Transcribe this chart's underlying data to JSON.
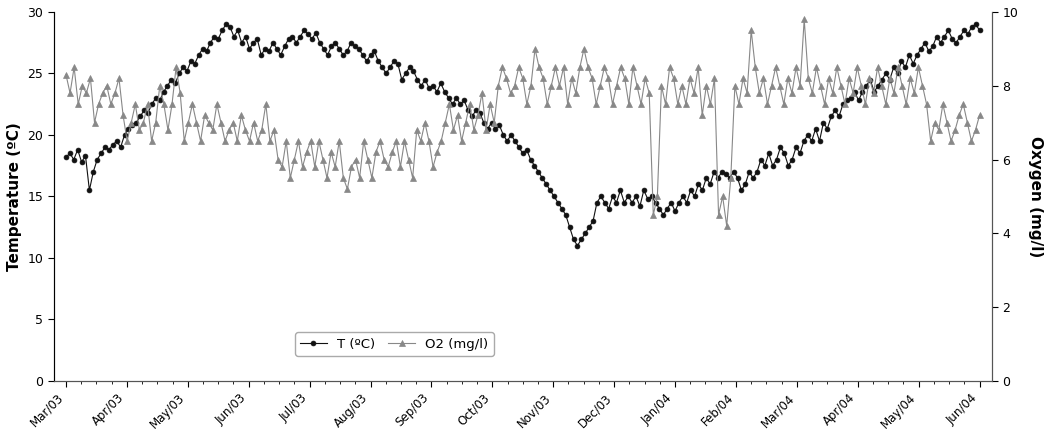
{
  "temp_data": [
    18.2,
    18.5,
    18.0,
    18.8,
    17.8,
    18.3,
    15.5,
    17.0,
    18.0,
    18.5,
    19.0,
    18.8,
    19.2,
    19.5,
    19.0,
    20.0,
    20.5,
    20.8,
    21.0,
    21.5,
    22.0,
    21.8,
    22.5,
    23.0,
    22.8,
    23.5,
    24.0,
    24.5,
    24.2,
    25.0,
    25.5,
    25.2,
    26.0,
    25.8,
    26.5,
    27.0,
    26.8,
    27.5,
    28.0,
    27.8,
    28.5,
    29.0,
    28.8,
    28.0,
    28.5,
    27.5,
    28.0,
    27.0,
    27.5,
    27.8,
    26.5,
    27.0,
    26.8,
    27.5,
    27.0,
    26.5,
    27.2,
    27.8,
    28.0,
    27.5,
    28.0,
    28.5,
    28.2,
    27.8,
    28.3,
    27.5,
    27.0,
    26.5,
    27.2,
    27.5,
    27.0,
    26.5,
    26.8,
    27.5,
    27.2,
    27.0,
    26.5,
    26.0,
    26.5,
    26.8,
    26.0,
    25.5,
    25.0,
    25.5,
    26.0,
    25.8,
    24.5,
    25.0,
    25.5,
    25.2,
    24.5,
    24.0,
    24.5,
    23.8,
    24.0,
    23.5,
    24.2,
    23.5,
    23.0,
    22.5,
    23.0,
    22.5,
    22.8,
    22.0,
    21.5,
    22.0,
    21.8,
    21.0,
    20.5,
    21.0,
    20.5,
    20.8,
    20.0,
    19.5,
    20.0,
    19.5,
    19.0,
    18.5,
    18.8,
    18.0,
    17.5,
    17.0,
    16.5,
    16.0,
    15.5,
    15.0,
    14.5,
    14.0,
    13.5,
    12.5,
    11.5,
    11.0,
    11.5,
    12.0,
    12.5,
    13.0,
    14.5,
    15.0,
    14.5,
    14.0,
    15.0,
    14.5,
    15.5,
    14.5,
    15.0,
    14.5,
    15.0,
    14.2,
    15.5,
    14.8,
    15.0,
    14.5,
    14.0,
    13.5,
    14.0,
    14.5,
    13.8,
    14.5,
    15.0,
    14.5,
    15.5,
    15.0,
    16.0,
    15.5,
    16.5,
    16.0,
    17.0,
    16.5,
    17.0,
    16.8,
    16.5,
    17.0,
    16.5,
    15.5,
    16.0,
    17.0,
    16.5,
    17.0,
    18.0,
    17.5,
    18.5,
    17.5,
    18.0,
    19.0,
    18.5,
    17.5,
    18.0,
    19.0,
    18.5,
    19.5,
    20.0,
    19.5,
    20.5,
    19.5,
    21.0,
    20.5,
    21.5,
    22.0,
    21.5,
    22.5,
    22.8,
    23.0,
    23.5,
    22.8,
    23.5,
    24.0,
    24.5,
    23.5,
    24.0,
    24.5,
    25.0,
    24.5,
    25.5,
    25.0,
    26.0,
    25.5,
    26.5,
    25.8,
    26.5,
    27.0,
    27.5,
    26.8,
    27.2,
    28.0,
    27.5,
    28.0,
    28.5,
    27.8,
    27.5,
    28.0,
    28.5,
    28.2,
    28.8,
    29.0,
    28.5
  ],
  "o2_data": [
    8.3,
    7.8,
    8.5,
    7.5,
    8.0,
    7.8,
    8.2,
    7.0,
    7.5,
    7.8,
    8.0,
    7.5,
    7.8,
    8.2,
    7.2,
    6.5,
    7.0,
    7.5,
    6.8,
    7.0,
    7.5,
    6.5,
    7.0,
    8.0,
    7.5,
    6.8,
    7.5,
    8.5,
    7.8,
    6.5,
    7.0,
    7.5,
    7.0,
    6.5,
    7.2,
    7.0,
    6.8,
    7.5,
    7.0,
    6.5,
    6.8,
    7.0,
    6.5,
    7.2,
    6.8,
    6.5,
    7.0,
    6.5,
    6.8,
    7.5,
    6.5,
    6.8,
    6.0,
    5.8,
    6.5,
    5.5,
    6.0,
    6.5,
    5.8,
    6.2,
    6.5,
    5.8,
    6.5,
    6.0,
    5.5,
    6.2,
    5.8,
    6.5,
    5.5,
    5.2,
    5.8,
    6.0,
    5.5,
    6.5,
    6.0,
    5.5,
    6.2,
    6.5,
    6.0,
    5.8,
    6.2,
    6.5,
    5.8,
    6.5,
    6.0,
    5.5,
    6.8,
    6.5,
    7.0,
    6.5,
    5.8,
    6.2,
    6.5,
    7.0,
    7.5,
    6.8,
    7.2,
    6.5,
    7.0,
    7.5,
    6.8,
    7.2,
    7.8,
    6.8,
    7.5,
    7.0,
    8.0,
    8.5,
    8.2,
    7.8,
    8.0,
    8.5,
    8.2,
    7.5,
    8.0,
    9.0,
    8.5,
    8.2,
    7.5,
    8.0,
    8.5,
    8.0,
    8.5,
    7.5,
    8.2,
    7.8,
    8.5,
    9.0,
    8.5,
    8.2,
    7.5,
    8.0,
    8.5,
    8.2,
    7.5,
    8.0,
    8.5,
    8.2,
    7.5,
    8.5,
    8.0,
    7.5,
    8.2,
    7.8,
    4.5,
    5.0,
    8.0,
    7.5,
    8.5,
    8.2,
    7.5,
    8.0,
    7.5,
    8.2,
    7.8,
    8.5,
    7.2,
    8.0,
    7.5,
    8.2,
    4.5,
    5.0,
    4.2,
    5.5,
    8.0,
    7.5,
    8.2,
    7.8,
    9.5,
    8.5,
    7.8,
    8.2,
    7.5,
    8.0,
    8.5,
    8.0,
    7.5,
    8.2,
    7.8,
    8.5,
    8.0,
    9.8,
    8.2,
    7.8,
    8.5,
    8.0,
    7.5,
    8.2,
    7.8,
    8.5,
    8.0,
    7.5,
    8.2,
    7.8,
    8.5,
    8.0,
    7.5,
    8.2,
    7.8,
    8.5,
    8.0,
    7.5,
    8.2,
    7.8,
    8.5,
    8.0,
    7.5,
    8.2,
    7.8,
    8.5,
    8.0,
    7.5,
    6.5,
    7.0,
    6.8,
    7.5,
    7.0,
    6.5,
    6.8,
    7.2,
    7.5,
    7.0,
    6.5,
    6.8,
    7.2
  ],
  "x_tick_labels": [
    "Mar/03",
    "Apr/03",
    "May/03",
    "Jun/03",
    "Jul/03",
    "Aug/03",
    "Sep/03",
    "Oct/03",
    "Nov/03",
    "Dec/03",
    "Jan/04",
    "Feb/04",
    "Mar/04",
    "Apr/04",
    "May/04",
    "Jun/04"
  ],
  "ylabel_left": "Temperature (ºC)",
  "ylabel_right": "Oxygen (mg/l)",
  "ylim_left": [
    0,
    30
  ],
  "ylim_right": [
    0,
    10
  ],
  "yticks_left": [
    0,
    5,
    10,
    15,
    20,
    25,
    30
  ],
  "yticks_right": [
    0,
    2,
    4,
    6,
    8,
    10
  ],
  "legend_temp": "T (ºC)",
  "legend_o2": "O2 (mg/l)",
  "color_temp": "#111111",
  "color_o2": "#888888",
  "line_width": 0.8,
  "marker_temp": "o",
  "marker_o2": "^",
  "marker_size_temp": 3.5,
  "marker_size_o2": 4.5
}
